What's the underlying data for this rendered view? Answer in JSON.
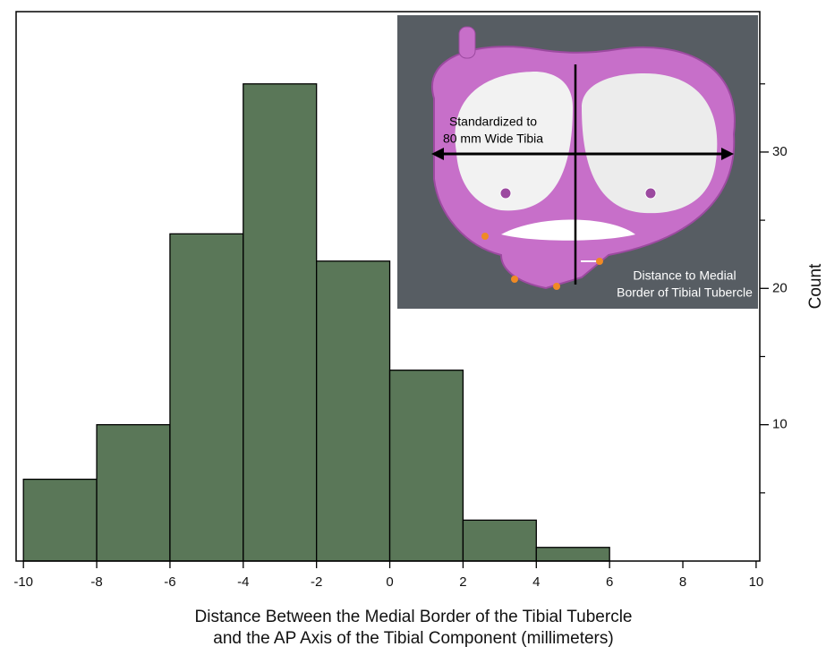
{
  "chart_data": {
    "type": "histogram",
    "bins": [
      -10,
      -8,
      -6,
      -4,
      -2,
      0,
      2,
      4,
      6,
      8,
      10
    ],
    "values": [
      6,
      10,
      24,
      35,
      22,
      14,
      3,
      1,
      0,
      0
    ],
    "color": "#5a7758",
    "xlim": [
      -10.2,
      10.1
    ],
    "xticks": [
      -10,
      -8,
      -6,
      -4,
      -2,
      0,
      2,
      4,
      6,
      8,
      10
    ],
    "ylim": [
      0,
      40.3
    ],
    "yticks": [
      10,
      20,
      30
    ],
    "yminorticks": [
      5,
      15,
      25,
      35
    ],
    "y_axis_side": "right",
    "x_label": [
      "Distance Between the Medial Border of the Tibial Tubercle",
      "and the AP Axis of the Tibial Component (millimeters)"
    ],
    "y_label": "Count",
    "annotations": [
      "Standardized to",
      "80 mm Wide Tibia",
      "Distance to Medial",
      "Border of Tibial Tubercle"
    ]
  }
}
